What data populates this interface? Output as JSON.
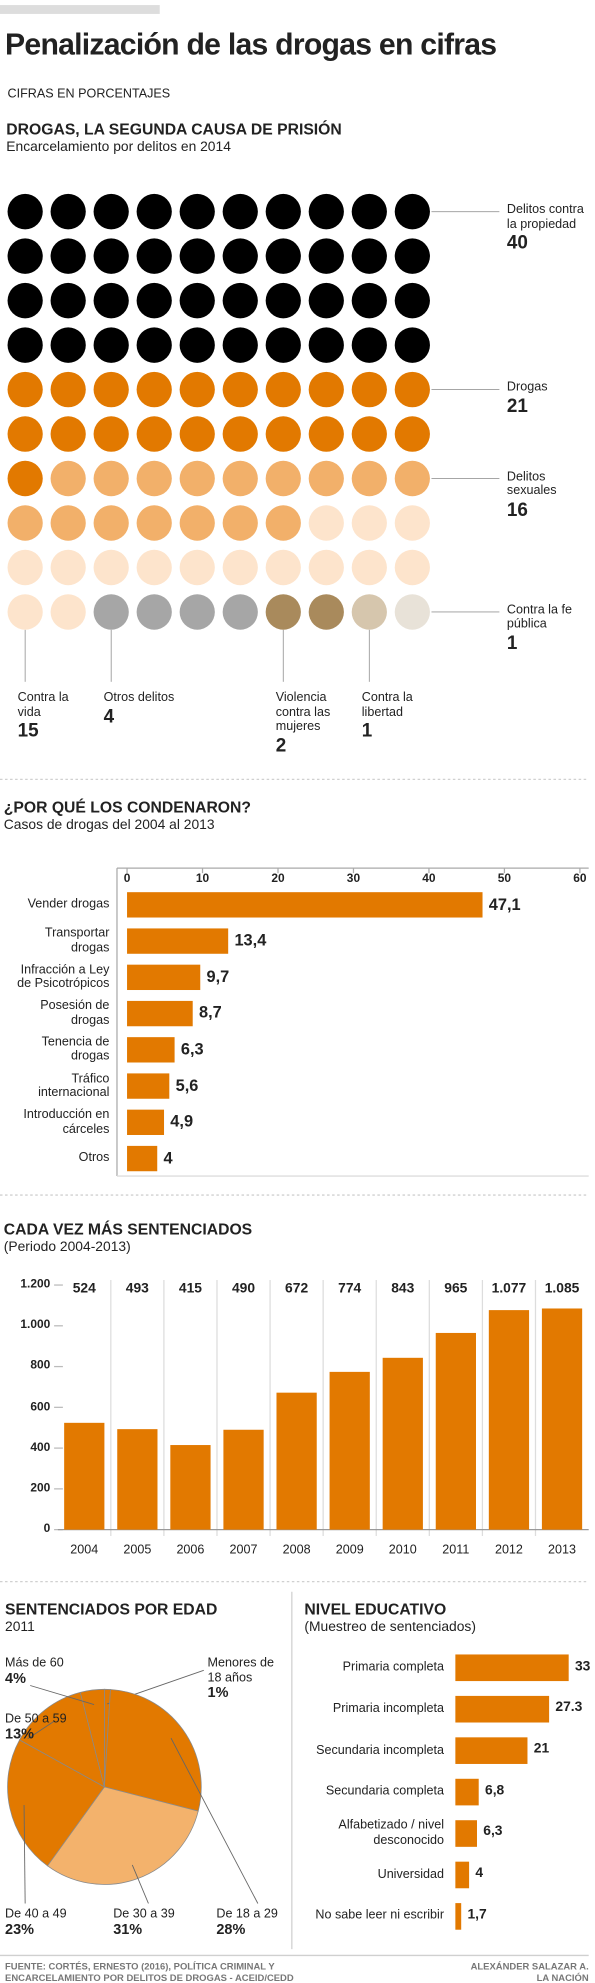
{
  "header": {
    "title": "Penalización de las drogas en cifras",
    "note": "CIFRAS EN PORCENTAJES"
  },
  "chart_data": [
    {
      "type": "waffle",
      "title": "DROGAS, LA SEGUNDA CAUSA DE PRISIÓN",
      "subtitle": "Encarcelamiento por delitos en 2014",
      "categories": [
        "Delitos contra la propiedad",
        "Drogas",
        "Delitos sexuales",
        "Contra la vida",
        "Otros delitos",
        "Violencia contra las mujeres",
        "Contra la libertad",
        "Contra la fe pública"
      ],
      "values": [
        40,
        21,
        16,
        15,
        4,
        2,
        1,
        1
      ],
      "colors": [
        "#000000",
        "#e27900",
        "#f2b06a",
        "#fde4cc",
        "#a6a6a6",
        "#a98a5c",
        "#d6c6ad",
        "#e8e2d8"
      ]
    },
    {
      "type": "hbar",
      "title": "¿POR QUÉ LOS CONDENARON?",
      "subtitle": "Casos de drogas del 2004 al 2013",
      "categories": [
        "Vender drogas",
        "Transportar drogas",
        "Infracción a Ley de Psicotrópicos",
        "Posesión de drogas",
        "Tenencia de drogas",
        "Tráfico internacional",
        "Introducción en cárceles",
        "Otros"
      ],
      "values": [
        47.1,
        13.4,
        9.7,
        8.7,
        6.3,
        5.6,
        4.9,
        4
      ],
      "value_labels": [
        "47,1",
        "13,4",
        "9,7",
        "8,7",
        "6,3",
        "5,6",
        "4,9",
        "4"
      ],
      "color": "#e27900",
      "xlim": [
        0,
        60
      ],
      "xticks": [
        0,
        10,
        20,
        30,
        40,
        50,
        60
      ]
    },
    {
      "type": "bar",
      "title": "CADA VEZ MÁS SENTENCIADOS",
      "subtitle": "(Periodo 2004-2013)",
      "categories": [
        "2004",
        "2005",
        "2006",
        "2007",
        "2008",
        "2009",
        "2010",
        "2011",
        "2012",
        "2013"
      ],
      "values": [
        524,
        493,
        415,
        490,
        672,
        774,
        843,
        965,
        1077,
        1085
      ],
      "value_labels": [
        "524",
        "493",
        "415",
        "490",
        "672",
        "774",
        "843",
        "965",
        "1.077",
        "1.085"
      ],
      "color": "#e27900",
      "ylim": [
        0,
        1200
      ],
      "yticks": [
        0,
        200,
        400,
        600,
        800,
        {
          "value": 1000,
          "label": "1.000"
        },
        {
          "value": 1200,
          "label": "1.200"
        }
      ]
    },
    {
      "type": "pie",
      "title": "SENTENCIADOS POR EDAD",
      "subtitle": "2011",
      "categories": [
        "Menores de 18 años",
        "De 18 a 29",
        "De 30 a 39",
        "De 40 a 49",
        "De 50 a 59",
        "Más de 60"
      ],
      "values": [
        1,
        28,
        31,
        23,
        13,
        4
      ],
      "value_labels": [
        "1%",
        "28%",
        "31%",
        "23%",
        "13%",
        "4%"
      ],
      "colors": [
        "#e27900",
        "#e27900",
        "#f3b26c",
        "#e27900",
        "#e27900",
        "#e27900"
      ]
    },
    {
      "type": "hbar",
      "title": "NIVEL EDUCATIVO",
      "subtitle": "(Muestreo de sentenciados)",
      "categories": [
        "Primaria completa",
        "Primaria incompleta",
        "Secundaria incompleta",
        "Secundaria completa",
        "Alfabetizado / nivel desconocido",
        "Universidad",
        "No sabe leer ni escribir"
      ],
      "values": [
        33,
        27.3,
        21,
        6.8,
        6.3,
        4,
        1.7
      ],
      "value_labels": [
        "33",
        "27.3",
        "21",
        "6,8",
        "6,3",
        "4",
        "1,7"
      ],
      "color": "#e27900"
    }
  ],
  "footer": {
    "source": "FUENTE: CORTÉS, ERNESTO (2016), POLÍTICA CRIMINAL Y ENCARCELAMIENTO POR DELITOS DE DROGAS - ACEID/CEDD",
    "credit": [
      "ALEXÁNDER SALAZAR A.",
      "LA NACIÓN"
    ]
  }
}
